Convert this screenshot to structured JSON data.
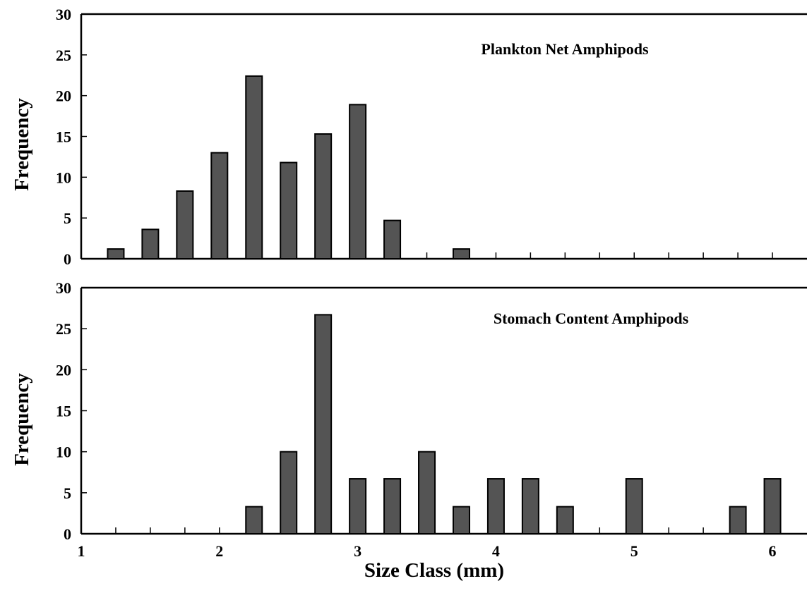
{
  "chart_data": [
    {
      "type": "bar",
      "title": "Plankton Net Amphipods",
      "xlabel": "",
      "ylabel": "Frequency",
      "ylim": [
        0,
        30
      ],
      "yticks": [
        0,
        5,
        10,
        15,
        20,
        25,
        30
      ],
      "xlim": [
        1,
        6.25
      ],
      "categories": [
        1.25,
        1.5,
        1.75,
        2.0,
        2.25,
        2.5,
        2.75,
        3.0,
        3.25,
        3.5,
        3.75
      ],
      "values": [
        1.2,
        3.6,
        8.3,
        13.0,
        22.4,
        11.8,
        15.3,
        18.9,
        4.7,
        0,
        1.2
      ],
      "bar_color": "#545454"
    },
    {
      "type": "bar",
      "title": "Stomach Content Amphipods",
      "xlabel": "Size Class (mm)",
      "ylabel": "Frequency",
      "ylim": [
        0,
        30
      ],
      "yticks": [
        0,
        5,
        10,
        15,
        20,
        25,
        30
      ],
      "xlim": [
        1,
        6.25
      ],
      "xticks": [
        1,
        2,
        3,
        4,
        5,
        6
      ],
      "categories": [
        2.25,
        2.5,
        2.75,
        3.0,
        3.25,
        3.5,
        3.75,
        4.0,
        4.25,
        4.5,
        4.75,
        5.0,
        5.25,
        5.5,
        5.75,
        6.0
      ],
      "values": [
        3.3,
        10.0,
        26.7,
        6.7,
        6.7,
        10.0,
        3.3,
        6.7,
        6.7,
        3.3,
        0,
        6.7,
        0,
        0,
        3.3,
        6.7
      ],
      "bar_color": "#545454"
    }
  ]
}
